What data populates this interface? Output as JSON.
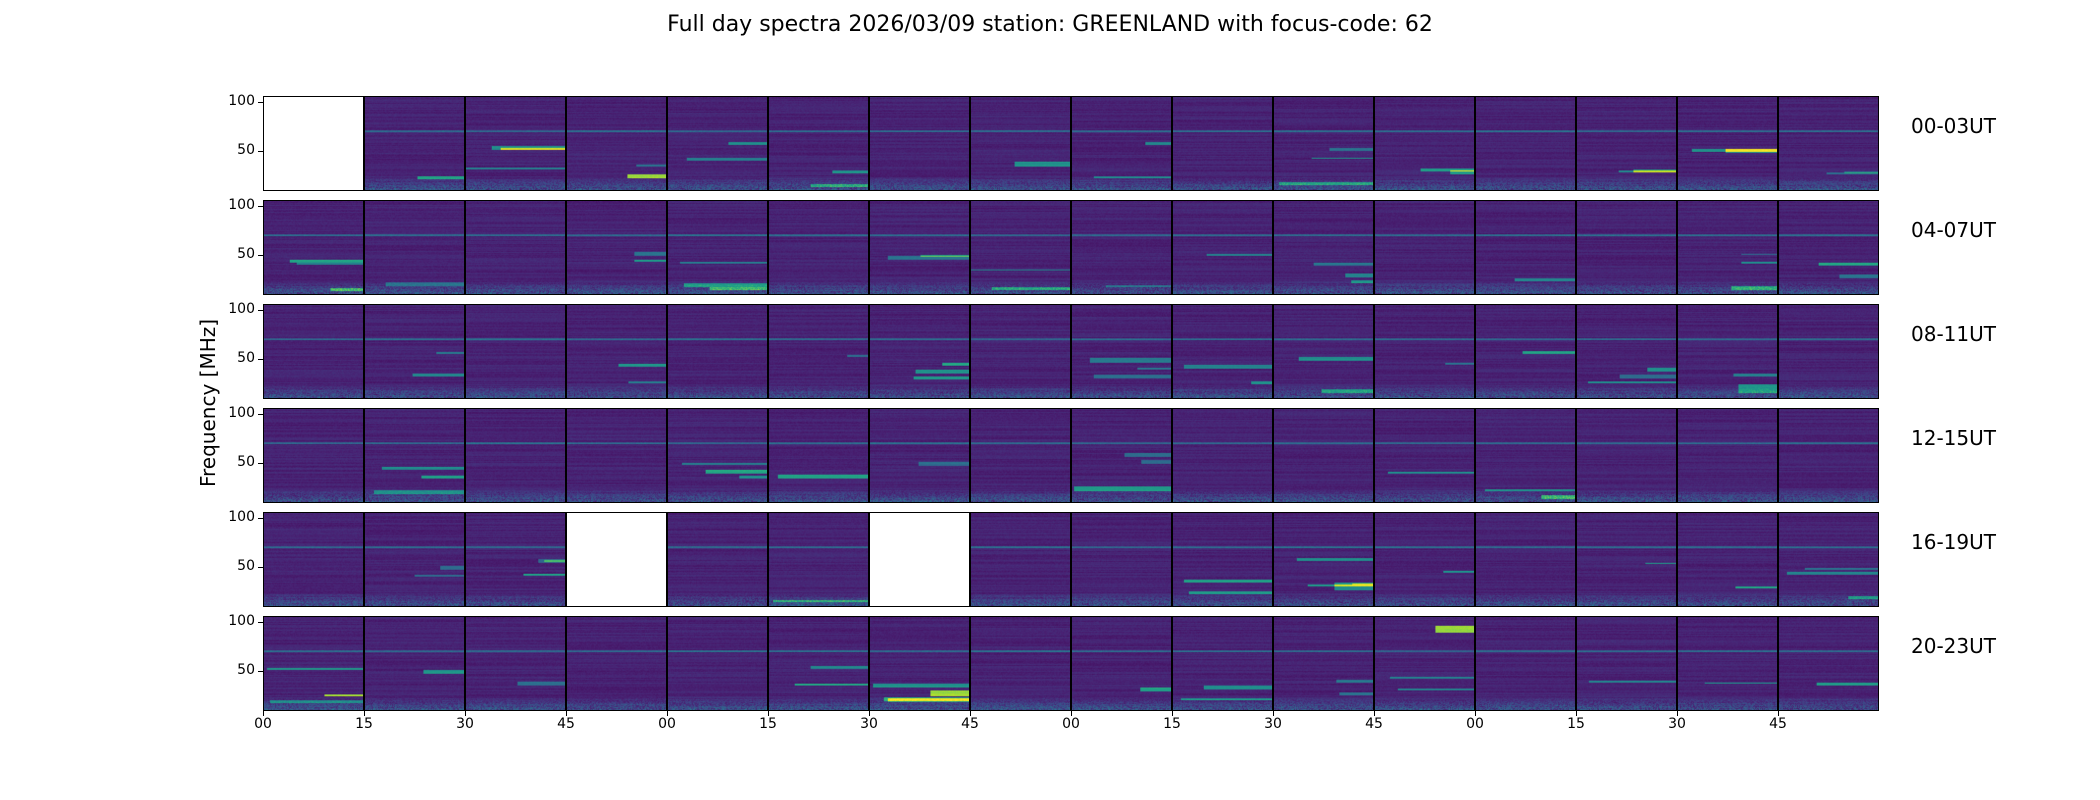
{
  "chart_data": {
    "type": "heatmap",
    "title": "Full day spectra 2026/03/09 station: GREENLAND with focus-code: 62",
    "ylabel": "Frequency [MHz]",
    "xlabel": "",
    "ylim": [
      9,
      106
    ],
    "yticks": [
      "100",
      "50"
    ],
    "ytick_values": [
      100,
      50
    ],
    "xticks": [
      "00",
      "15",
      "30",
      "45",
      "00",
      "15",
      "30",
      "45",
      "00",
      "15",
      "30",
      "45",
      "00",
      "15",
      "30",
      "45"
    ],
    "row_labels": [
      "00-03UT",
      "04-07UT",
      "08-11UT",
      "12-15UT",
      "16-19UT",
      "20-23UT"
    ],
    "panels_per_row": 16,
    "panel_minutes": 15,
    "colormap": "viridis",
    "missing_panels": [
      [
        0,
        0
      ],
      [
        4,
        3
      ],
      [
        4,
        6
      ]
    ],
    "persistent_band_mhz": 71,
    "notable_features": [
      {
        "row": 0,
        "col": 3,
        "freq_mhz": [
          22,
          26
        ],
        "intensity": "high"
      },
      {
        "row": 5,
        "col": 0,
        "freq_mhz": [
          24,
          26
        ],
        "intensity": "high"
      },
      {
        "row": 5,
        "col": 6,
        "freq_mhz": [
          24,
          30
        ],
        "intensity": "high"
      },
      {
        "row": 5,
        "col": 11,
        "freq_mhz": [
          90,
          97
        ],
        "intensity": "high"
      },
      {
        "row": 2,
        "col": 14,
        "freq_mhz": [
          15,
          24
        ],
        "intensity": "medium"
      },
      {
        "row": 4,
        "col": 10,
        "freq_mhz": [
          26,
          34
        ],
        "intensity": "medium"
      }
    ]
  },
  "colors": {
    "low": "#440154",
    "mid": "#31688e",
    "teal": "#21918c",
    "high": "#fde725"
  }
}
